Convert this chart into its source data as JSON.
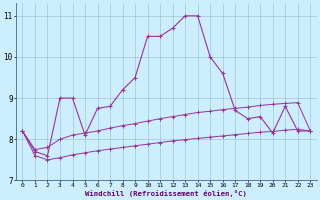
{
  "x": [
    0,
    1,
    2,
    3,
    4,
    5,
    6,
    7,
    8,
    9,
    10,
    11,
    12,
    13,
    14,
    15,
    16,
    17,
    18,
    19,
    20,
    21,
    22,
    23
  ],
  "main_line": [
    8.2,
    7.7,
    7.6,
    9.0,
    9.0,
    8.1,
    8.75,
    8.8,
    9.2,
    9.5,
    10.5,
    10.5,
    10.7,
    11.0,
    11.0,
    10.0,
    9.6,
    8.7,
    8.5,
    8.55,
    8.15,
    8.8,
    8.2,
    8.2
  ],
  "upper_line": [
    8.2,
    7.75,
    7.8,
    8.0,
    8.1,
    8.15,
    8.2,
    8.27,
    8.33,
    8.38,
    8.44,
    8.5,
    8.55,
    8.6,
    8.65,
    8.68,
    8.72,
    8.75,
    8.78,
    8.82,
    8.85,
    8.87,
    8.89,
    8.2
  ],
  "lower_line": [
    8.2,
    7.6,
    7.5,
    7.55,
    7.62,
    7.67,
    7.72,
    7.76,
    7.8,
    7.84,
    7.88,
    7.92,
    7.96,
    7.99,
    8.02,
    8.05,
    8.08,
    8.11,
    8.14,
    8.17,
    8.19,
    8.22,
    8.24,
    8.2
  ],
  "line_color": "#993399",
  "bg_color": "#cceeff",
  "grid_color": "#99bbcc",
  "xlabel": "Windchill (Refroidissement éolien,°C)",
  "ylim": [
    7,
    11.3
  ],
  "xlim": [
    -0.5,
    23.5
  ],
  "yticks": [
    7,
    8,
    9,
    10,
    11
  ],
  "xticks": [
    0,
    1,
    2,
    3,
    4,
    5,
    6,
    7,
    8,
    9,
    10,
    11,
    12,
    13,
    14,
    15,
    16,
    17,
    18,
    19,
    20,
    21,
    22,
    23
  ]
}
